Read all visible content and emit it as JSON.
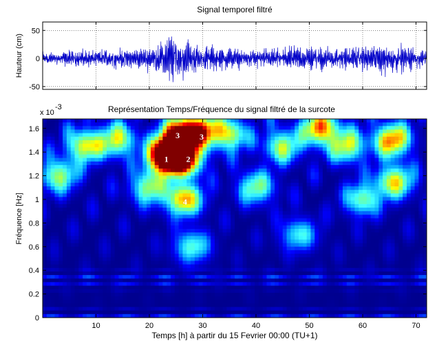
{
  "colors": {
    "signal_line": "#0000c8",
    "colormap": [
      "#00008f",
      "#0000ff",
      "#00a0ff",
      "#40ffff",
      "#80ff80",
      "#ffff00",
      "#ff9000",
      "#ff0000",
      "#800000"
    ]
  },
  "chart_data": [
    {
      "type": "line",
      "title": "Signal temporel filtré",
      "xlabel": "",
      "ylabel": "Hauteur (cm)",
      "xlim": [
        0,
        72
      ],
      "ylim": [
        -55,
        65
      ],
      "yticks": [
        "-50",
        "0",
        "50"
      ],
      "grid": true,
      "envelope": [
        {
          "t": 0,
          "amp": 15
        },
        {
          "t": 10,
          "amp": 18
        },
        {
          "t": 19,
          "amp": 22
        },
        {
          "t": 22,
          "amp": 35
        },
        {
          "t": 24,
          "amp": 55
        },
        {
          "t": 26,
          "amp": 45
        },
        {
          "t": 30,
          "amp": 28
        },
        {
          "t": 38,
          "amp": 20
        },
        {
          "t": 45,
          "amp": 22
        },
        {
          "t": 52,
          "amp": 28
        },
        {
          "t": 58,
          "amp": 25
        },
        {
          "t": 63,
          "amp": 35
        },
        {
          "t": 66,
          "amp": 30
        },
        {
          "t": 72,
          "amp": 20
        }
      ]
    },
    {
      "type": "heatmap",
      "title": "Représentation Temps/Fréquence du signal filtré de la surcote",
      "xlabel": "Temps [h] à partir du 15 Fevrier 00:00 (TU+1)",
      "ylabel": "Fréquence [Hz]",
      "y_exponent": "x 10",
      "y_exponent_power": "-3",
      "xlim": [
        0,
        72
      ],
      "ylim": [
        0,
        1.68
      ],
      "xticks": [
        "10",
        "20",
        "30",
        "40",
        "50",
        "60",
        "70"
      ],
      "yticks": [
        "0",
        "0.2",
        "0.4",
        "0.6",
        "0.8",
        "1",
        "1.2",
        "1.4",
        "1.6"
      ],
      "hotspots": [
        {
          "t": 23,
          "f": 1.35,
          "level": 1.0
        },
        {
          "t": 24.5,
          "f": 1.42,
          "level": 0.95
        },
        {
          "t": 26.5,
          "f": 1.33,
          "level": 0.85
        },
        {
          "t": 25.8,
          "f": 1.55,
          "level": 0.85
        },
        {
          "t": 29.5,
          "f": 1.58,
          "level": 0.8
        },
        {
          "t": 26.5,
          "f": 1.0,
          "level": 0.7
        },
        {
          "t": 52,
          "f": 1.6,
          "level": 0.75
        },
        {
          "t": 65.5,
          "f": 1.5,
          "level": 0.75
        },
        {
          "t": 66,
          "f": 1.15,
          "level": 0.6
        },
        {
          "t": 8,
          "f": 1.45,
          "level": 0.6
        },
        {
          "t": 14,
          "f": 1.5,
          "level": 0.55
        },
        {
          "t": 35,
          "f": 1.55,
          "level": 0.55
        },
        {
          "t": 45,
          "f": 1.45,
          "level": 0.5
        },
        {
          "t": 57,
          "f": 1.45,
          "level": 0.55
        },
        {
          "t": 3,
          "f": 1.2,
          "level": 0.5
        },
        {
          "t": 20,
          "f": 1.1,
          "level": 0.5
        },
        {
          "t": 40,
          "f": 1.1,
          "level": 0.45
        },
        {
          "t": 60,
          "f": 1.0,
          "level": 0.45
        },
        {
          "t": 28,
          "f": 0.6,
          "level": 0.4
        },
        {
          "t": 48,
          "f": 0.7,
          "level": 0.35
        }
      ],
      "annotations": [
        {
          "text": "1",
          "t": 23.2,
          "f": 1.34
        },
        {
          "text": "2",
          "t": 27.3,
          "f": 1.34
        },
        {
          "text": "3",
          "t": 25.3,
          "f": 1.54
        },
        {
          "text": "3",
          "t": 29.8,
          "f": 1.53
        },
        {
          "text": "4",
          "t": 26.7,
          "f": 0.98
        }
      ]
    }
  ]
}
